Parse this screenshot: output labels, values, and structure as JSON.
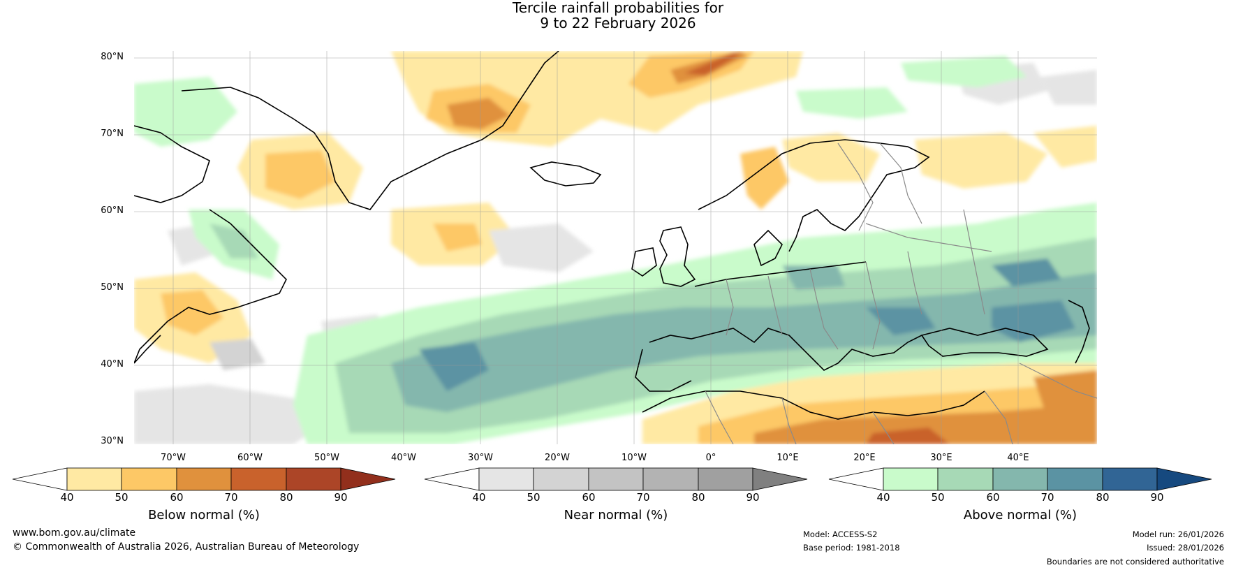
{
  "title": {
    "line1": "Tercile rainfall probabilities for",
    "line2": "9 to 22 February 2026"
  },
  "map": {
    "lat_labels": [
      "80°N",
      "70°N",
      "60°N",
      "50°N",
      "40°N",
      "30°N"
    ],
    "lon_labels": [
      "70°W",
      "60°W",
      "50°W",
      "40°W",
      "30°W",
      "20°W",
      "10°W",
      "0°",
      "10°E",
      "20°E",
      "30°E",
      "40°E"
    ],
    "colors": {
      "ocean_bg": "#ffffff",
      "below": [
        "#ffe9a3",
        "#fdc866",
        "#e0913d",
        "#c9622c",
        "#ac4527",
        "#922f1c"
      ],
      "near": [
        "#e5e5e5",
        "#d3d3d3",
        "#c3c3c3",
        "#b3b3b3",
        "#a0a0a0",
        "#808080"
      ],
      "above": [
        "#c9fbcb",
        "#a7d9b6",
        "#84b7ad",
        "#5b93a3",
        "#316595",
        "#16497f"
      ],
      "coastline": "#000000",
      "border": "#8a8a8a"
    }
  },
  "colorbars": [
    {
      "title": "Below normal (%)",
      "ticks": [
        "40",
        "50",
        "60",
        "70",
        "80",
        "90"
      ]
    },
    {
      "title": "Near normal (%)",
      "ticks": [
        "40",
        "50",
        "60",
        "70",
        "80",
        "90"
      ]
    },
    {
      "title": "Above normal (%)",
      "ticks": [
        "40",
        "50",
        "60",
        "70",
        "80",
        "90"
      ]
    }
  ],
  "footer": {
    "website": "www.bom.gov.au/climate",
    "copyright": "© Commonwealth of Australia 2026, Australian Bureau of Meteorology",
    "model": "Model: ACCESS-S2",
    "base_period": "Base period: 1981-2018",
    "model_run": "Model run: 26/01/2026",
    "issued": "Issued: 28/01/2026",
    "disclaimer": "Boundaries are not considered authoritative"
  }
}
